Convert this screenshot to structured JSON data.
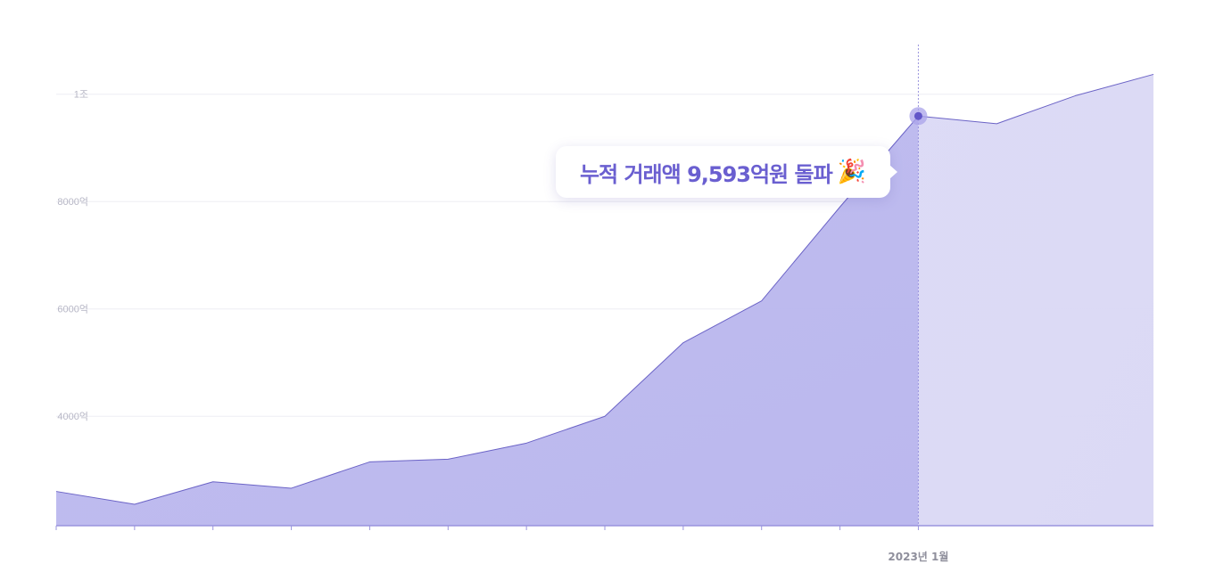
{
  "chart_data": {
    "type": "area",
    "x_highlight_label": "2023년 1월",
    "x_highlight_index": 11,
    "y_ticks": [
      {
        "value": 4000,
        "label": "4000억"
      },
      {
        "value": 6000,
        "label": "6000억"
      },
      {
        "value": 8000,
        "label": "8000억"
      },
      {
        "value": 10000,
        "label": "1조"
      }
    ],
    "ylim": [
      1962,
      10925
    ],
    "values": [
      2600,
      2360,
      2780,
      2660,
      3150,
      3200,
      3500,
      4000,
      5370,
      6150,
      7900,
      9593,
      9450,
      9970,
      10370
    ],
    "projection_start_index": 11,
    "annotation": {
      "text": "누적 거래액 9,593억원 돌파",
      "emoji": "🎉",
      "value": 9593
    },
    "grid": true,
    "colors": {
      "actual_fill": "#bbb8ee",
      "projected_fill": "#dbd9f5",
      "line": "#6b63c6",
      "marker": "#6256c8",
      "marker_halo": "#a9a3ea",
      "axis": "#9a94de",
      "grid": "#ededf3"
    }
  }
}
